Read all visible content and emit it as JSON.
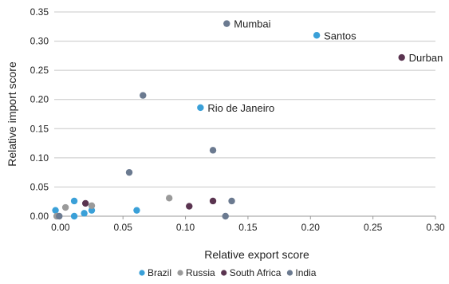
{
  "chart_data": {
    "type": "scatter",
    "xlabel": "Relative export score",
    "ylabel": "Relative import score",
    "xlim": [
      -0.005,
      0.3
    ],
    "ylim": [
      0,
      0.35
    ],
    "x_ticks": [
      "0.00",
      "0.05",
      "0.10",
      "0.15",
      "0.20",
      "0.25",
      "0.30"
    ],
    "y_ticks": [
      "0.00",
      "0.05",
      "0.10",
      "0.15",
      "0.20",
      "0.25",
      "0.30",
      "0.35"
    ],
    "grid": true,
    "legend_position": "bottom",
    "series": [
      {
        "name": "Brazil",
        "color": "#3aa0d8",
        "points": [
          {
            "x": -0.004,
            "y": 0.01,
            "label": ""
          },
          {
            "x": 0.011,
            "y": 0.026,
            "label": ""
          },
          {
            "x": 0.011,
            "y": 0.0,
            "label": ""
          },
          {
            "x": 0.019,
            "y": 0.005,
            "label": ""
          },
          {
            "x": 0.025,
            "y": 0.01,
            "label": ""
          },
          {
            "x": 0.061,
            "y": 0.01,
            "label": ""
          },
          {
            "x": 0.112,
            "y": 0.186,
            "label": "Rio de Janeiro"
          },
          {
            "x": 0.205,
            "y": 0.31,
            "label": "Santos"
          }
        ]
      },
      {
        "name": "Russia",
        "color": "#9a9a9a",
        "points": [
          {
            "x": -0.003,
            "y": 0.0,
            "label": ""
          },
          {
            "x": 0.004,
            "y": 0.015,
            "label": ""
          },
          {
            "x": 0.025,
            "y": 0.018,
            "label": ""
          },
          {
            "x": 0.087,
            "y": 0.031,
            "label": ""
          }
        ]
      },
      {
        "name": "South Africa",
        "color": "#5a3450",
        "points": [
          {
            "x": 0.02,
            "y": 0.022,
            "label": ""
          },
          {
            "x": 0.103,
            "y": 0.017,
            "label": ""
          },
          {
            "x": 0.122,
            "y": 0.026,
            "label": ""
          },
          {
            "x": 0.273,
            "y": 0.272,
            "label": "Durban"
          }
        ]
      },
      {
        "name": "India",
        "color": "#6b7a90",
        "points": [
          {
            "x": -0.001,
            "y": 0.0,
            "label": ""
          },
          {
            "x": 0.055,
            "y": 0.075,
            "label": ""
          },
          {
            "x": 0.066,
            "y": 0.207,
            "label": ""
          },
          {
            "x": 0.122,
            "y": 0.113,
            "label": ""
          },
          {
            "x": 0.132,
            "y": 0.0,
            "label": ""
          },
          {
            "x": 0.137,
            "y": 0.026,
            "label": ""
          },
          {
            "x": 0.133,
            "y": 0.33,
            "label": "Mumbai"
          }
        ]
      }
    ]
  }
}
